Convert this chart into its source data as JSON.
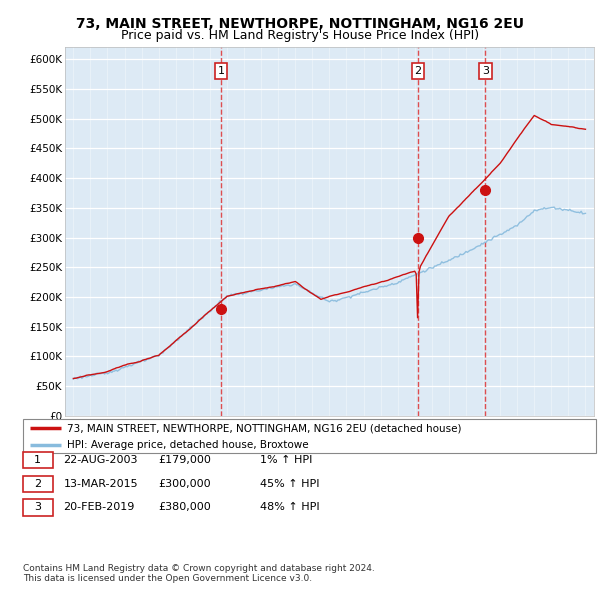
{
  "title": "73, MAIN STREET, NEWTHORPE, NOTTINGHAM, NG16 2EU",
  "subtitle": "Price paid vs. HM Land Registry's House Price Index (HPI)",
  "ylim": [
    0,
    620000
  ],
  "xlim_start": 1994.5,
  "xlim_end": 2025.5,
  "sale_dates": [
    2003.64,
    2015.19,
    2019.13
  ],
  "sale_prices": [
    179000,
    300000,
    380000
  ],
  "sale_labels": [
    "1",
    "2",
    "3"
  ],
  "line_color_red": "#cc1111",
  "line_color_blue": "#88bbdd",
  "vline_color": "#dd3333",
  "plot_bg": "#ddeaf5",
  "grid_color": "#ffffff",
  "legend_entries": [
    "73, MAIN STREET, NEWTHORPE, NOTTINGHAM, NG16 2EU (detached house)",
    "HPI: Average price, detached house, Broxtowe"
  ],
  "table_data": [
    [
      "1",
      "22-AUG-2003",
      "£179,000",
      "1% ↑ HPI"
    ],
    [
      "2",
      "13-MAR-2015",
      "£300,000",
      "45% ↑ HPI"
    ],
    [
      "3",
      "20-FEB-2019",
      "£380,000",
      "48% ↑ HPI"
    ]
  ],
  "footer": "Contains HM Land Registry data © Crown copyright and database right 2024.\nThis data is licensed under the Open Government Licence v3.0.",
  "title_fontsize": 10,
  "subtitle_fontsize": 9
}
